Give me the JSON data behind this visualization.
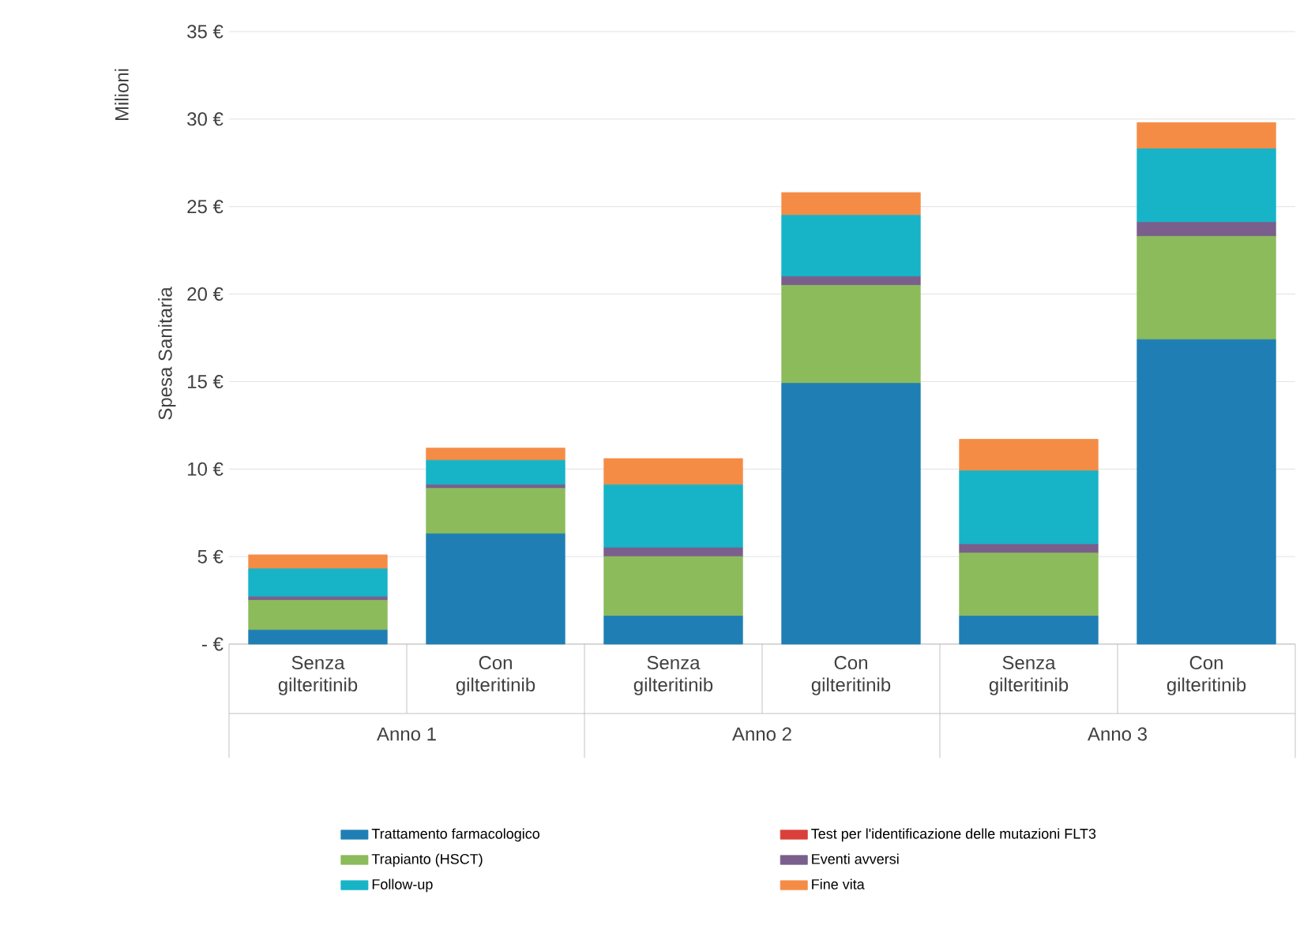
{
  "chart_data": {
    "type": "bar",
    "stacked": true,
    "ylabel": "Spesa Sanitaria",
    "annotations": [
      "Milioni",
      "Anno 1",
      "Anno 2",
      "Anno 3"
    ],
    "categories": [
      "Senza gilteritinib",
      "Con gilteritinib",
      "Senza gilteritinib",
      "Con gilteritinib",
      "Senza gilteritinib",
      "Con gilteritinib"
    ],
    "series": [
      {
        "name": "Trattamento farmacologico",
        "color": "#1f7fb4",
        "values": [
          0.8,
          6.3,
          1.6,
          14.9,
          1.6,
          17.4
        ]
      },
      {
        "name": "Test per l'identificazione delle mutazioni FLT3",
        "color": "#d9403a",
        "values": [
          0,
          0,
          0,
          0,
          0,
          0
        ]
      },
      {
        "name": "Trapianto (HSCT)",
        "color": "#8cbb5c",
        "values": [
          1.7,
          2.6,
          3.4,
          5.6,
          3.6,
          5.9
        ]
      },
      {
        "name": "Eventi avversi",
        "color": "#7a5f8c",
        "values": [
          0.2,
          0.2,
          0.5,
          0.5,
          0.5,
          0.8
        ]
      },
      {
        "name": "Follow-up",
        "color": "#17b4c8",
        "values": [
          1.6,
          1.4,
          3.6,
          3.5,
          4.2,
          4.2
        ]
      },
      {
        "name": "Fine vita",
        "color": "#f58c46",
        "values": [
          0.8,
          0.7,
          1.5,
          1.3,
          1.8,
          1.5
        ]
      }
    ],
    "ylim": [
      0,
      35
    ],
    "yticks": [
      {
        "value": 0,
        "label": "- €"
      },
      {
        "value": 5,
        "label": "5 €"
      },
      {
        "value": 10,
        "label": "10 €"
      },
      {
        "value": 15,
        "label": "15 €"
      },
      {
        "value": 20,
        "label": "20 €"
      },
      {
        "value": 25,
        "label": "25 €"
      },
      {
        "value": 30,
        "label": "30 €"
      },
      {
        "value": 35,
        "label": "35 €"
      }
    ],
    "grid": "y",
    "legend": "bottom"
  }
}
